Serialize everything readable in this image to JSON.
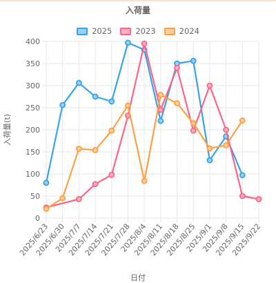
{
  "chart_data": {
    "type": "line",
    "title": "入荷量",
    "ylabel": "入荷量(t)",
    "xlabel": "日付",
    "ylim": [
      0,
      400
    ],
    "yticks": [
      0,
      50,
      100,
      150,
      200,
      250,
      300,
      350,
      400
    ],
    "grid": true,
    "legend_position": "top",
    "categories": [
      "2025/6/23",
      "2025/6/30",
      "2025/7/7",
      "2025/7/14",
      "2025/7/21",
      "2025/7/28",
      "2025/8/4",
      "2025/8/11",
      "2025/8/18",
      "2025/8/25",
      "2025/9/1",
      "2025/9/8",
      "2025/9/15",
      "2025/9/22"
    ],
    "series": [
      {
        "name": "2025",
        "color": "#36a2eb",
        "fill": "#9ad0f5",
        "values": [
          80,
          256,
          306,
          275,
          264,
          397,
          381,
          220,
          350,
          356,
          131,
          185,
          97,
          null
        ]
      },
      {
        "name": "2023",
        "color": "#ff6384",
        "fill": "#ffb1c1",
        "values": [
          24,
          null,
          43,
          77,
          98,
          232,
          395,
          245,
          340,
          198,
          300,
          200,
          50,
          43
        ]
      },
      {
        "name": "2024",
        "color": "#ff9f40",
        "fill": "#ffcf9f",
        "values": [
          21,
          45,
          157,
          154,
          198,
          255,
          84,
          279,
          260,
          215,
          158,
          165,
          221,
          null
        ]
      }
    ]
  }
}
